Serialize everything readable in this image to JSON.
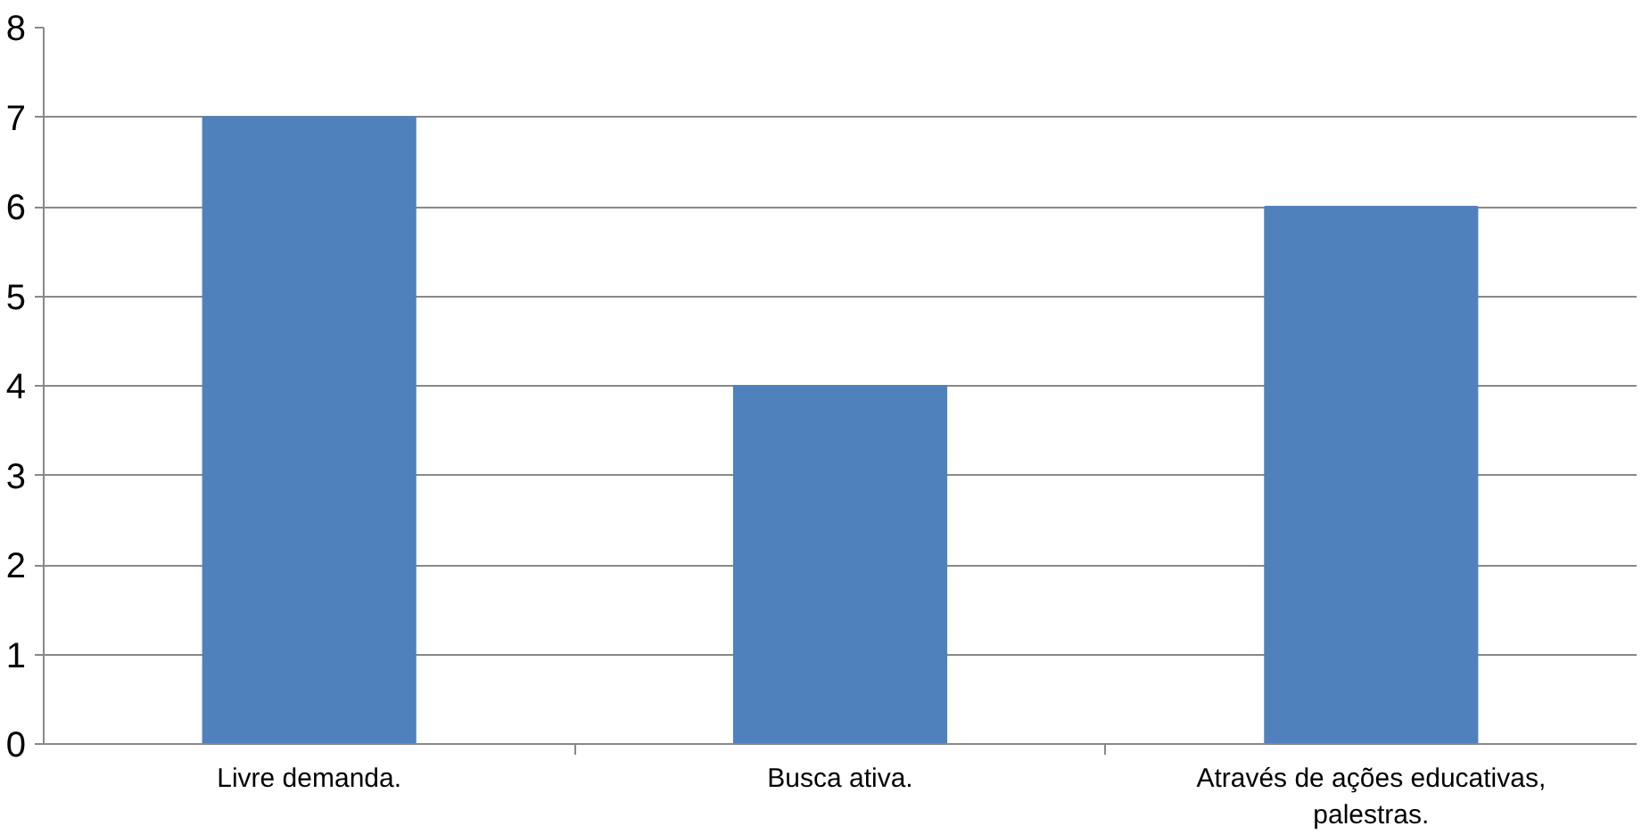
{
  "chart_data": {
    "type": "bar",
    "categories": [
      "Livre demanda.",
      "Busca ativa.",
      "Através de ações educativas, palestras."
    ],
    "values": [
      7,
      4,
      6
    ],
    "color": "#4f81bd",
    "ylim": [
      0,
      8
    ],
    "yticks": [
      0,
      1,
      2,
      3,
      4,
      5,
      6,
      7,
      8
    ],
    "grid": "y"
  }
}
